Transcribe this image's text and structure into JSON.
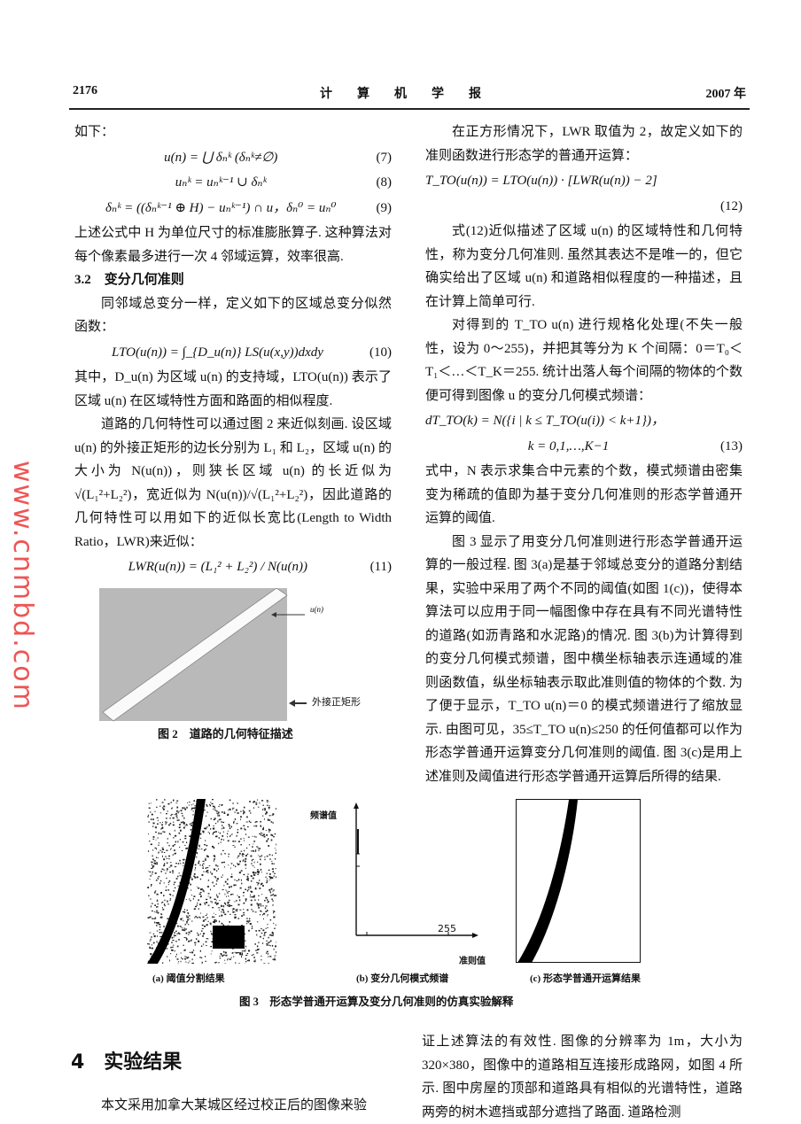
{
  "header": {
    "page_number": "2176",
    "journal": "计　　算　　机　　学　　报",
    "year": "2007 年"
  },
  "left": {
    "intro": "如下：",
    "eq7": "u(n) = ⋃ δₙᵏ  (δₙᵏ≠∅)",
    "eq7_num": "(7)",
    "eq8": "uₙᵏ = uₙᵏ⁻¹ ∪ δₙᵏ",
    "eq8_num": "(8)",
    "eq9": "δₙᵏ = ((δₙᵏ⁻¹ ⊕ H) − uₙᵏ⁻¹) ∩ u，δₙ⁰ = uₙ⁰",
    "eq9_num": "(9)",
    "para1": "上述公式中 H 为单位尺寸的标准膨胀算子. 这种算法对每个像素最多进行一次 4 邻域运算，效率很高.",
    "section_3_2": "3.2　变分几何准则",
    "para2": "同邻域总变分一样，定义如下的区域总变分似然函数：",
    "eq10": "LTO(u(n)) = ∫_{D_u(n)} LS(u(x,y))dxdy",
    "eq10_num": "(10)",
    "para3": "其中，D_u(n) 为区域 u(n) 的支持域，LTO(u(n)) 表示了区域 u(n) 在区域特性方面和路面的相似程度.",
    "para4": "道路的几何特性可以通过图 2 来近似刻画. 设区域 u(n) 的外接正矩形的边长分别为 L₁ 和 L₂，区域 u(n) 的大小为 N(u(n))，则狭长区域 u(n) 的长近似为 √(L₁²+L₂²)，宽近似为 N(u(n))/√(L₁²+L₂²)，因此道路的几何特性可以用如下的近似长宽比(Length to Width Ratio，LWR)来近似：",
    "eq11": "LWR(u(n)) = (L₁² + L₂²) / N(u(n))",
    "eq11_num": "(11)"
  },
  "figure2": {
    "label_region": "u(n)",
    "label_rect": "外接正矩形",
    "caption": "图 2　道路的几何特征描述"
  },
  "figure3": {
    "sub_a": "(a) 阈值分割结果",
    "sub_b": "(b) 变分几何模式频谱",
    "sub_c": "(c) 形态学普通开运算结果",
    "b_ylabel": "频谱值",
    "b_xlabel": "准则值",
    "b_tick": "255",
    "caption": "图 3　形态学普通开运算及变分几何准则的仿真实验解释"
  },
  "right": {
    "para1": "在正方形情况下，LWR 取值为 2，故定义如下的准则函数进行形态学的普通开运算：",
    "eq12": "T_TO(u(n)) = LTO(u(n)) · [LWR(u(n)) − 2]",
    "eq12_num": "(12)",
    "para2": "式(12)近似描述了区域 u(n) 的区域特性和几何特性，称为变分几何准则. 虽然其表达不是唯一的，但它确实给出了区域 u(n) 和道路相似程度的一种描述，且在计算上简单可行.",
    "para3": "对得到的 T_TO u(n) 进行规格化处理(不失一般性，设为 0～255)，并把其等分为 K 个间隔：0＝T₀＜T₁＜…＜T_K＝255. 统计出落人每个间隔的物体的个数便可得到图像 u 的变分几何模式频谱：",
    "eq13a": "dT_TO(k) = N({i | k ≤ T_TO(u(i)) < k+1})，",
    "eq13b": "k = 0,1,…,K−1",
    "eq13_num": "(13)",
    "para4": "式中，N 表示求集合中元素的个数，模式频谱由密集变为稀疏的值即为基于变分几何准则的形态学普通开运算的阈值.",
    "para5": "图 3 显示了用变分几何准则进行形态学普通开运算的一般过程. 图 3(a)是基于邻域总变分的道路分割结果，实验中采用了两个不同的阈值(如图 1(c))，使得本算法可以应用于同一幅图像中存在具有不同光谱特性的道路(如沥青路和水泥路)的情况. 图 3(b)为计算得到的变分几何模式频谱，图中横坐标轴表示连通域的准则函数值，纵坐标轴表示取此准则值的物体的个数. 为了便于显示，T_TO u(n)＝0 的模式频谱进行了缩放显示. 由图可见，35≤T_TO u(n)≤250 的任何值都可以作为形态学普通开运算变分几何准则的阈值. 图 3(c)是用上述准则及阈值进行形态学普通开运算后所得的结果.",
    "para6": "证上述算法的有效性. 图像的分辨率为 1m，大小为 320×380，图像中的道路相互连接形成路网，如图 4 所示. 图中房屋的顶部和道路具有相似的光谱特性，道路两旁的树木遮挡或部分遮挡了路面. 道路检测"
  },
  "section4": {
    "heading": "4　实验结果",
    "para": "本文采用加拿大某城区经过校正后的图像来验"
  },
  "watermark": "www.cnmbd.com"
}
